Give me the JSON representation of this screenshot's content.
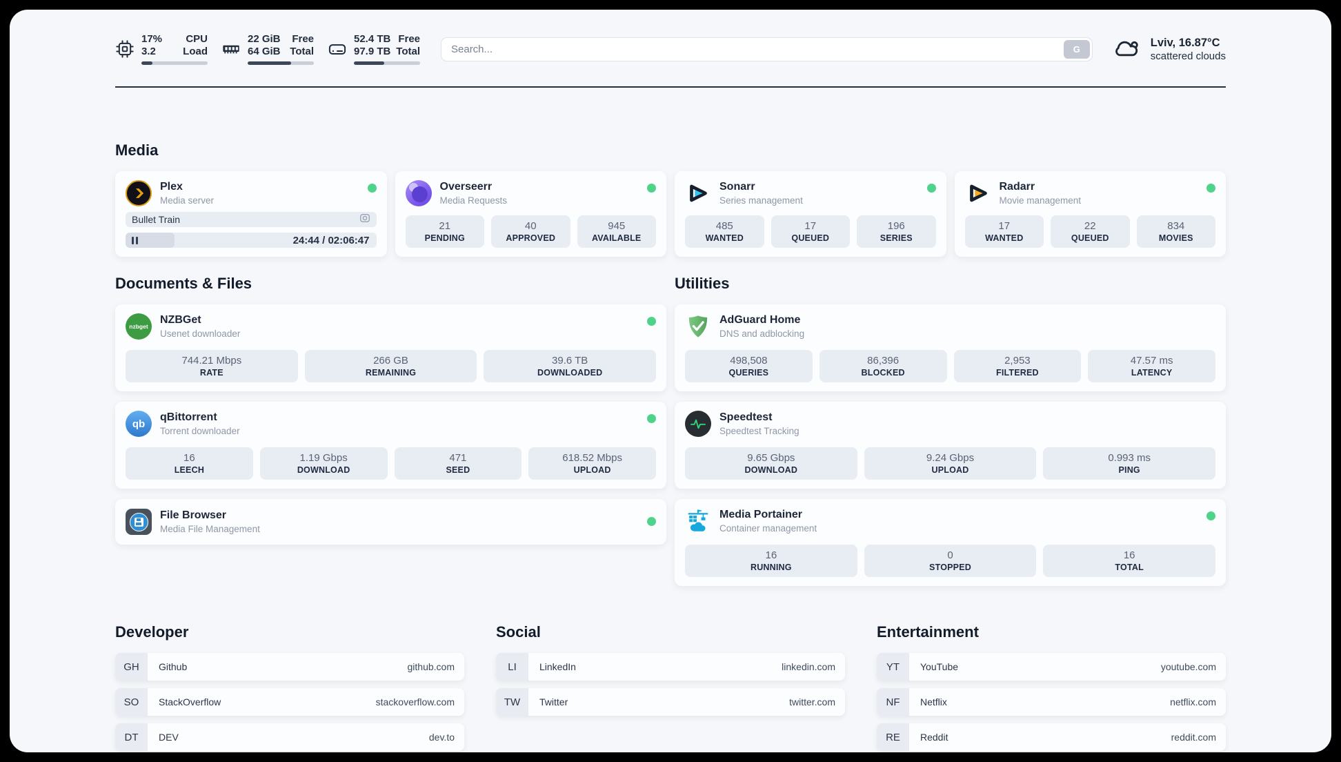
{
  "header": {
    "metrics": [
      {
        "title": "CPU load",
        "values": [
          "17%",
          "3.2"
        ],
        "labels": [
          "CPU",
          "Load"
        ],
        "progress": 17
      },
      {
        "title": "Memory",
        "values": [
          "22 GiB",
          "64 GiB"
        ],
        "labels": [
          "Free",
          "Total"
        ],
        "progress": 66
      },
      {
        "title": "Disk",
        "values": [
          "52.4 TB",
          "97.9 TB"
        ],
        "labels": [
          "Free",
          "Total"
        ],
        "progress": 46
      }
    ],
    "search": {
      "placeholder": "Search...",
      "button": "G"
    },
    "weather": {
      "summary": "Lviv, 16.87°C",
      "condition": "scattered clouds"
    }
  },
  "colors": {
    "status_online": "#4fd38b",
    "navy": "#232d3d",
    "plex_gold": "#e5a00d",
    "sonarr_cyan": "#33c5f0",
    "radarr_orange": "#f7a825",
    "portainer_blue": "#17a9dd"
  },
  "sections": {
    "media": {
      "title": "Media",
      "plex": {
        "name": "Plex",
        "subtitle": "Media server",
        "online": true,
        "now_playing": "Bullet Train",
        "time_display": "24:44 / 02:06:47",
        "progress_percent": 19.5
      },
      "apps": [
        {
          "name": "Overseerr",
          "subtitle": "Media Requests",
          "online": true,
          "stats": [
            {
              "value": "21",
              "label": "PENDING"
            },
            {
              "value": "40",
              "label": "APPROVED"
            },
            {
              "value": "945",
              "label": "AVAILABLE"
            }
          ]
        },
        {
          "name": "Sonarr",
          "subtitle": "Series management",
          "online": true,
          "stats": [
            {
              "value": "485",
              "label": "WANTED"
            },
            {
              "value": "17",
              "label": "QUEUED"
            },
            {
              "value": "196",
              "label": "SERIES"
            }
          ]
        },
        {
          "name": "Radarr",
          "subtitle": "Movie management",
          "online": true,
          "stats": [
            {
              "value": "17",
              "label": "WANTED"
            },
            {
              "value": "22",
              "label": "QUEUED"
            },
            {
              "value": "834",
              "label": "MOVIES"
            }
          ]
        }
      ]
    },
    "documents": {
      "title": "Documents & Files",
      "apps": [
        {
          "name": "NZBGet",
          "subtitle": "Usenet downloader",
          "online": true,
          "logo_text": "nzbget",
          "stats": [
            {
              "value": "744.21 Mbps",
              "label": "RATE"
            },
            {
              "value": "266 GB",
              "label": "REMAINING"
            },
            {
              "value": "39.6 TB",
              "label": "DOWNLOADED"
            }
          ]
        },
        {
          "name": "qBittorrent",
          "subtitle": "Torrent downloader",
          "online": true,
          "logo_text": "qb",
          "stats": [
            {
              "value": "16",
              "label": "LEECH"
            },
            {
              "value": "1.19 Gbps",
              "label": "DOWNLOAD"
            },
            {
              "value": "471",
              "label": "SEED"
            },
            {
              "value": "618.52 Mbps",
              "label": "UPLOAD"
            }
          ]
        },
        {
          "name": "File Browser",
          "subtitle": "Media File Management",
          "online": true,
          "stats": []
        }
      ]
    },
    "utilities": {
      "title": "Utilities",
      "apps": [
        {
          "name": "AdGuard Home",
          "subtitle": "DNS and adblocking",
          "online": false,
          "stats": [
            {
              "value": "498,508",
              "label": "QUERIES"
            },
            {
              "value": "86,396",
              "label": "BLOCKED"
            },
            {
              "value": "2,953",
              "label": "FILTERED"
            },
            {
              "value": "47.57 ms",
              "label": "LATENCY"
            }
          ]
        },
        {
          "name": "Speedtest",
          "subtitle": "Speedtest Tracking",
          "online": false,
          "stats": [
            {
              "value": "9.65 Gbps",
              "label": "DOWNLOAD"
            },
            {
              "value": "9.24 Gbps",
              "label": "UPLOAD"
            },
            {
              "value": "0.993 ms",
              "label": "PING"
            }
          ]
        },
        {
          "name": "Media Portainer",
          "subtitle": "Container management",
          "online": true,
          "stats": [
            {
              "value": "16",
              "label": "RUNNING"
            },
            {
              "value": "0",
              "label": "STOPPED"
            },
            {
              "value": "16",
              "label": "TOTAL"
            }
          ]
        }
      ]
    },
    "bookmarks": [
      {
        "title": "Developer",
        "links": [
          {
            "abbr": "GH",
            "name": "Github",
            "url": "github.com"
          },
          {
            "abbr": "SO",
            "name": "StackOverflow",
            "url": "stackoverflow.com"
          },
          {
            "abbr": "DT",
            "name": "DEV",
            "url": "dev.to"
          }
        ]
      },
      {
        "title": "Social",
        "links": [
          {
            "abbr": "LI",
            "name": "LinkedIn",
            "url": "linkedin.com"
          },
          {
            "abbr": "TW",
            "name": "Twitter",
            "url": "twitter.com"
          }
        ]
      },
      {
        "title": "Entertainment",
        "links": [
          {
            "abbr": "YT",
            "name": "YouTube",
            "url": "youtube.com"
          },
          {
            "abbr": "NF",
            "name": "Netflix",
            "url": "netflix.com"
          },
          {
            "abbr": "RE",
            "name": "Reddit",
            "url": "reddit.com"
          }
        ]
      }
    ]
  }
}
